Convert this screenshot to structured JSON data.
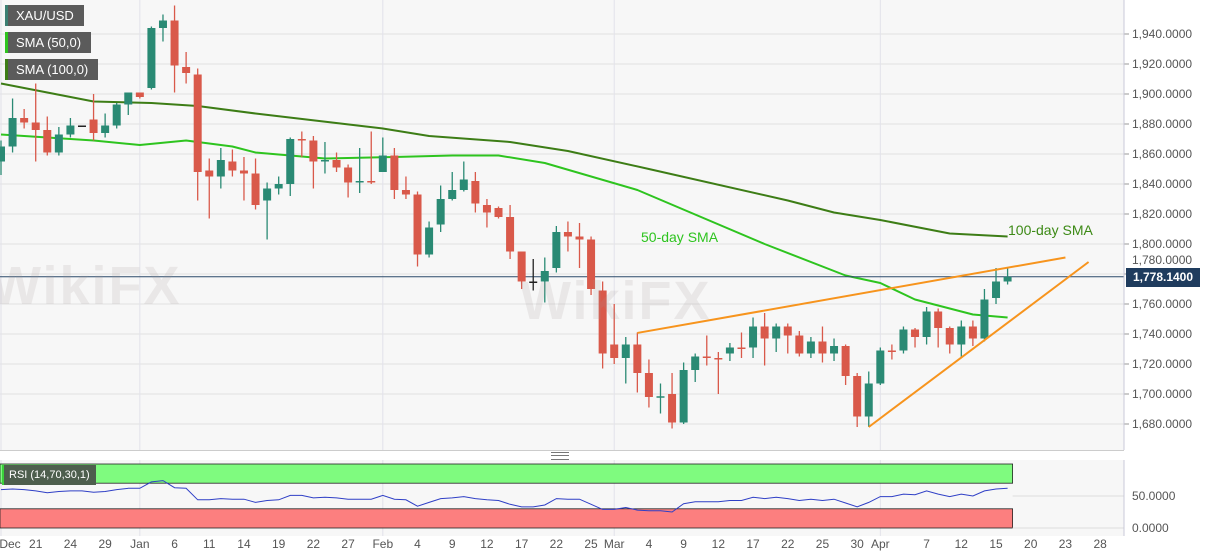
{
  "legend": {
    "symbol": "XAU/USD",
    "sma50": "SMA (50,0)",
    "sma100": "SMA (100,0)",
    "rsi": "RSI (14,70,30,1)"
  },
  "annotations": {
    "sma50_label": "50-day SMA",
    "sma100_label": "100-day SMA"
  },
  "current_price_label": "1,778.1400",
  "watermark": "WikiFX",
  "colors": {
    "bull": "#2a8a74",
    "bear": "#d9594a",
    "sma50": "#2ec41f",
    "sma100": "#3d7d16",
    "trendline": "#f7941d",
    "rsi_line": "#2f3fc6",
    "rsi_overbought_zone": "#7ffb7f",
    "rsi_oversold_zone": "#fc7f7f",
    "price_tag": "#1f3c5e"
  },
  "chart_data": [
    {
      "type": "candlestick",
      "title": "XAU/USD",
      "ylim": [
        1670,
        1960
      ],
      "grid": true,
      "y_ticks": [
        "1,680.0000",
        "1,700.0000",
        "1,720.0000",
        "1,740.0000",
        "1,760.0000",
        "1,780.0000",
        "1,800.0000",
        "1,820.0000",
        "1,840.0000",
        "1,860.0000",
        "1,880.0000",
        "1,900.0000",
        "1,920.0000",
        "1,940.0000"
      ],
      "y_tick_values": [
        1680,
        1700,
        1720,
        1740,
        1760,
        1780,
        1800,
        1820,
        1840,
        1860,
        1880,
        1900,
        1920,
        1940
      ],
      "x_ticks": [
        {
          "label": "Dec",
          "date": "Dec 16"
        },
        {
          "label": "21",
          "date": "Dec 21"
        },
        {
          "label": "24",
          "date": "Dec 24"
        },
        {
          "label": "29",
          "date": "Dec 29"
        },
        {
          "label": "Jan",
          "date": "Jan 1"
        },
        {
          "label": "6",
          "date": "Jan 6"
        },
        {
          "label": "11",
          "date": "Jan 11"
        },
        {
          "label": "14",
          "date": "Jan 14"
        },
        {
          "label": "19",
          "date": "Jan 19"
        },
        {
          "label": "22",
          "date": "Jan 22"
        },
        {
          "label": "27",
          "date": "Jan 27"
        },
        {
          "label": "Feb",
          "date": "Feb 1"
        },
        {
          "label": "4",
          "date": "Feb 4"
        },
        {
          "label": "9",
          "date": "Feb 9"
        },
        {
          "label": "12",
          "date": "Feb 12"
        },
        {
          "label": "17",
          "date": "Feb 17"
        },
        {
          "label": "22",
          "date": "Feb 22"
        },
        {
          "label": "25",
          "date": "Feb 25"
        },
        {
          "label": "Mar",
          "date": "Mar 1"
        },
        {
          "label": "4",
          "date": "Mar 4"
        },
        {
          "label": "9",
          "date": "Mar 9"
        },
        {
          "label": "12",
          "date": "Mar 12"
        },
        {
          "label": "17",
          "date": "Mar 17"
        },
        {
          "label": "22",
          "date": "Mar 22"
        },
        {
          "label": "25",
          "date": "Mar 25"
        },
        {
          "label": "30",
          "date": "Mar 30"
        },
        {
          "label": "Apr",
          "date": "Apr 1"
        },
        {
          "label": "7",
          "date": "Apr 7"
        },
        {
          "label": "12",
          "date": "Apr 12"
        },
        {
          "label": "15",
          "date": "Apr 15"
        },
        {
          "label": "20",
          "date": "Apr 20"
        },
        {
          "label": "23",
          "date": "Apr 23"
        },
        {
          "label": "28",
          "date": "Apr 28"
        }
      ],
      "last_price": 1778.14,
      "candles_ohlc": [
        [
          "Dec 16",
          1855,
          1869,
          1846,
          1865
        ],
        [
          "Dec 17",
          1865,
          1897,
          1861,
          1884
        ],
        [
          "Dec 18",
          1884,
          1890,
          1877,
          1881
        ],
        [
          "Dec 21",
          1881,
          1907,
          1855,
          1876
        ],
        [
          "Dec 22",
          1876,
          1885,
          1859,
          1861
        ],
        [
          "Dec 23",
          1861,
          1878,
          1859,
          1873
        ],
        [
          "Dec 24",
          1873,
          1884,
          1871,
          1879
        ],
        [
          "Dec 25",
          1879,
          1879,
          1879,
          1879
        ],
        [
          "Dec 28",
          1883,
          1900,
          1869,
          1874
        ],
        [
          "Dec 29",
          1874,
          1887,
          1871,
          1879
        ],
        [
          "Dec 30",
          1879,
          1894,
          1877,
          1893
        ],
        [
          "Dec 31",
          1893,
          1901,
          1886,
          1901
        ],
        [
          "Jan 1",
          1901,
          1901,
          1897,
          1898
        ],
        [
          "Jan 4",
          1904,
          1945,
          1903,
          1944
        ],
        [
          "Jan 5",
          1944,
          1953,
          1935,
          1949
        ],
        [
          "Jan 6",
          1949,
          1959,
          1901,
          1919
        ],
        [
          "Jan 7",
          1918,
          1928,
          1907,
          1914
        ],
        [
          "Jan 8",
          1913,
          1917,
          1829,
          1848
        ],
        [
          "Jan 11",
          1849,
          1857,
          1817,
          1845
        ],
        [
          "Jan 12",
          1845,
          1864,
          1837,
          1856
        ],
        [
          "Jan 13",
          1855,
          1863,
          1845,
          1849
        ],
        [
          "Jan 14",
          1849,
          1858,
          1829,
          1847
        ],
        [
          "Jan 15",
          1847,
          1857,
          1823,
          1826
        ],
        [
          "Jan 18",
          1829,
          1841,
          1803,
          1837
        ],
        [
          "Jan 19",
          1837,
          1845,
          1833,
          1840
        ],
        [
          "Jan 20",
          1840,
          1871,
          1832,
          1870
        ],
        [
          "Jan 21",
          1870,
          1875,
          1858,
          1869
        ],
        [
          "Jan 22",
          1869,
          1872,
          1837,
          1855
        ],
        [
          "Jan 25",
          1855,
          1868,
          1847,
          1856
        ],
        [
          "Jan 26",
          1856,
          1861,
          1848,
          1851
        ],
        [
          "Jan 27",
          1851,
          1853,
          1831,
          1841
        ],
        [
          "Jan 28",
          1841,
          1864,
          1834,
          1842
        ],
        [
          "Jan 29",
          1842,
          1875,
          1840,
          1841
        ],
        [
          "Feb 1",
          1848,
          1871,
          1848,
          1859
        ],
        [
          "Feb 2",
          1859,
          1864,
          1830,
          1836
        ],
        [
          "Feb 3",
          1836,
          1845,
          1830,
          1833
        ],
        [
          "Feb 4",
          1833,
          1835,
          1785,
          1793
        ],
        [
          "Feb 5",
          1793,
          1815,
          1791,
          1811
        ],
        [
          "Feb 8",
          1813,
          1839,
          1808,
          1830
        ],
        [
          "Feb 9",
          1830,
          1848,
          1829,
          1836
        ],
        [
          "Feb 10",
          1836,
          1855,
          1835,
          1843
        ],
        [
          "Feb 11",
          1842,
          1848,
          1821,
          1827
        ],
        [
          "Feb 12",
          1826,
          1830,
          1811,
          1821
        ],
        [
          "Feb 15",
          1824,
          1825,
          1817,
          1818
        ],
        [
          "Feb 16",
          1818,
          1826,
          1790,
          1795
        ],
        [
          "Feb 17",
          1795,
          1795,
          1770,
          1775
        ],
        [
          "Feb 18",
          1775,
          1790,
          1769,
          1775
        ],
        [
          "Feb 19",
          1775,
          1791,
          1761,
          1782
        ],
        [
          "Feb 22",
          1784,
          1812,
          1781,
          1808
        ],
        [
          "Feb 23",
          1808,
          1815,
          1795,
          1805
        ],
        [
          "Feb 24",
          1805,
          1814,
          1784,
          1803
        ],
        [
          "Feb 25",
          1803,
          1805,
          1766,
          1770
        ],
        [
          "Feb 26",
          1769,
          1775,
          1717,
          1727
        ],
        [
          "Mar 1",
          1733,
          1760,
          1720,
          1724
        ],
        [
          "Mar 2",
          1724,
          1738,
          1707,
          1733
        ],
        [
          "Mar 3",
          1733,
          1741,
          1701,
          1714
        ],
        [
          "Mar 4",
          1714,
          1723,
          1691,
          1698
        ],
        [
          "Mar 5",
          1698,
          1707,
          1687,
          1698.5
        ],
        [
          "Mar 8",
          1700,
          1714,
          1677,
          1681
        ],
        [
          "Mar 9",
          1681,
          1721,
          1680,
          1716
        ],
        [
          "Mar 10",
          1716,
          1727,
          1708,
          1725
        ],
        [
          "Mar 11",
          1725,
          1739,
          1719,
          1724
        ],
        [
          "Mar 12",
          1724,
          1728,
          1700,
          1723.5
        ],
        [
          "Mar 15",
          1727,
          1734,
          1722,
          1731
        ],
        [
          "Mar 16",
          1731,
          1741,
          1724,
          1730.5
        ],
        [
          "Mar 17",
          1731,
          1751,
          1724,
          1745
        ],
        [
          "Mar 18",
          1745,
          1754,
          1719,
          1737
        ],
        [
          "Mar 19",
          1737,
          1747,
          1728,
          1745
        ],
        [
          "Mar 22",
          1745,
          1747,
          1727,
          1739
        ],
        [
          "Mar 23",
          1739,
          1742,
          1725,
          1727
        ],
        [
          "Mar 24",
          1727,
          1738,
          1724,
          1735
        ],
        [
          "Mar 25",
          1735,
          1745,
          1721,
          1727
        ],
        [
          "Mar 26",
          1727,
          1737,
          1722,
          1732
        ],
        [
          "Mar 29",
          1732,
          1733,
          1706,
          1712
        ],
        [
          "Mar 30",
          1712,
          1714,
          1678,
          1685
        ],
        [
          "Mar 31",
          1685,
          1715,
          1678,
          1707
        ],
        [
          "Apr 1",
          1707,
          1731,
          1706,
          1729
        ],
        [
          "Apr 2",
          1729,
          1733,
          1723,
          1728.5
        ],
        [
          "Apr 5",
          1729,
          1745,
          1727,
          1743
        ],
        [
          "Apr 6",
          1743,
          1744,
          1731,
          1738
        ],
        [
          "Apr 7",
          1738,
          1758,
          1733,
          1755
        ],
        [
          "Apr 8",
          1755,
          1757,
          1731,
          1744
        ],
        [
          "Apr 9",
          1744,
          1745,
          1727,
          1733
        ],
        [
          "Apr 12",
          1733,
          1749,
          1724,
          1745
        ],
        [
          "Apr 13",
          1745,
          1749,
          1732,
          1737
        ],
        [
          "Apr 14",
          1737,
          1770,
          1735,
          1763
        ],
        [
          "Apr 15",
          1764,
          1784,
          1760,
          1775
        ],
        [
          "Apr 16",
          1775,
          1784,
          1773,
          1778.14
        ]
      ],
      "sma100": [
        [
          "Dec 16",
          1907
        ],
        [
          "Dec 28",
          1895
        ],
        [
          "Jan 4",
          1894
        ],
        [
          "Jan 8",
          1892
        ],
        [
          "Jan 15",
          1887
        ],
        [
          "Feb 1",
          1877
        ],
        [
          "Feb 5",
          1872
        ],
        [
          "Feb 16",
          1868
        ],
        [
          "Feb 23",
          1862
        ],
        [
          "Mar 4",
          1850
        ],
        [
          "Mar 22",
          1829
        ],
        [
          "Mar 26",
          1821
        ],
        [
          "Apr 1",
          1816
        ],
        [
          "Apr 9",
          1807
        ],
        [
          "Apr 16",
          1805
        ]
      ],
      "sma50": [
        [
          "Dec 16",
          1873
        ],
        [
          "Dec 28",
          1869
        ],
        [
          "Jan 1",
          1866
        ],
        [
          "Jan 7",
          1869
        ],
        [
          "Jan 13",
          1865
        ],
        [
          "Jan 15",
          1861
        ],
        [
          "Jan 25",
          1857
        ],
        [
          "Feb 2",
          1858
        ],
        [
          "Feb 9",
          1859
        ],
        [
          "Feb 15",
          1859
        ],
        [
          "Feb 19",
          1854
        ],
        [
          "Mar 3",
          1836
        ],
        [
          "Mar 18",
          1800
        ],
        [
          "Mar 29",
          1779
        ],
        [
          "Apr 1",
          1774
        ],
        [
          "Apr 6",
          1763
        ],
        [
          "Apr 13",
          1753
        ],
        [
          "Apr 16",
          1751
        ]
      ],
      "trendlines": [
        {
          "from": [
            "Mar 3",
            1740.7
          ],
          "to": [
            "Apr 23",
            1791
          ]
        },
        {
          "from": [
            "Mar 31",
            1678
          ],
          "to": [
            "Apr 27",
            1788
          ]
        }
      ]
    },
    {
      "type": "line",
      "title": "RSI (14,70,30,1)",
      "ylim": [
        0,
        100
      ],
      "y_ticks": [
        "50.0000",
        "0.0000"
      ],
      "y_tick_values": [
        50,
        0
      ],
      "overbought": 70,
      "oversold": 30,
      "values": [
        60,
        61,
        60,
        58,
        55,
        57,
        58,
        58,
        56,
        57,
        60,
        62,
        62,
        72,
        74,
        63,
        62,
        44,
        44,
        46,
        45,
        45,
        40,
        43,
        44,
        51,
        51,
        47,
        48,
        47,
        45,
        45,
        45,
        51,
        45,
        44,
        34,
        40,
        46,
        47,
        49,
        46,
        44,
        43,
        37,
        33,
        33,
        36,
        46,
        45,
        45,
        37,
        29,
        29,
        32,
        28,
        27,
        27,
        25,
        38,
        41,
        41,
        41,
        43,
        43,
        48,
        46,
        48,
        46,
        43,
        45,
        43,
        45,
        39,
        33,
        40,
        49,
        49,
        53,
        52,
        58,
        53,
        49,
        53,
        50,
        58,
        61,
        62
      ]
    }
  ]
}
